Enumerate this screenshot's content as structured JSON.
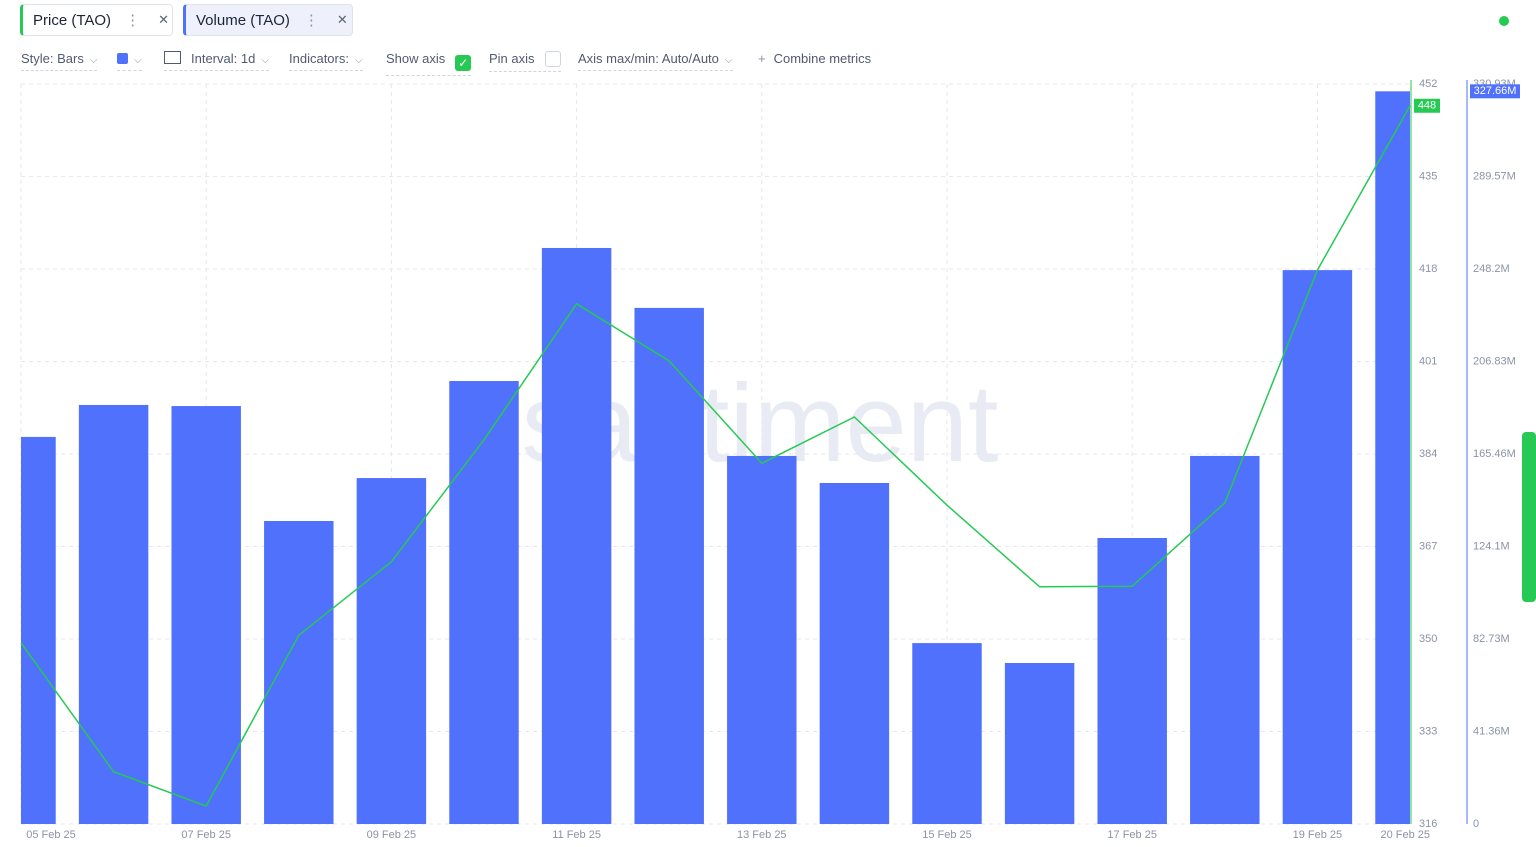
{
  "toolbar": {
    "style": "Style: Bars",
    "interval": "Interval: 1d",
    "indicators": "Indicators:",
    "show_axis": "Show axis",
    "pin_axis": "Pin axis",
    "axis_maxmin": "Axis max/min: Auto/Auto",
    "combine": "Combine metrics"
  },
  "chart_data": {
    "type": "bar",
    "watermark": "santiment",
    "categories": [
      "05 Feb 25",
      null,
      "07 Feb 25",
      null,
      "09 Feb 25",
      null,
      "11 Feb 25",
      null,
      "13 Feb 25",
      null,
      "15 Feb 25",
      null,
      "17 Feb 25",
      null,
      "19 Feb 25",
      "20 Feb 25"
    ],
    "series": [
      {
        "name": "Volume (TAO)",
        "type": "bar",
        "axis": "y2",
        "color": "#5071fb",
        "values": [
          173100000,
          187400000,
          186900000,
          135500000,
          154700000,
          198100000,
          257600000,
          230800000,
          164600000,
          152500000,
          80900000,
          72000000,
          127900000,
          164600000,
          247700000,
          327660000
        ],
        "value_labels": [
          null,
          null,
          null,
          null,
          null,
          null,
          null,
          null,
          null,
          null,
          null,
          null,
          null,
          null,
          null,
          "327.66M"
        ]
      },
      {
        "name": "Price (TAO)",
        "type": "line",
        "color": "#26c953",
        "values": [
          349.3,
          325.6,
          319.3,
          350.7,
          364.2,
          386.6,
          411.6,
          401.1,
          382.3,
          390.8,
          374.6,
          359.6,
          359.7,
          375.0,
          417.8,
          448
        ],
        "value_labels": [
          null,
          null,
          null,
          null,
          null,
          null,
          null,
          null,
          null,
          null,
          null,
          null,
          null,
          null,
          null,
          "448"
        ]
      }
    ],
    "ylim": [
      316,
      452
    ],
    "yticks": [
      316,
      333,
      350,
      367,
      384,
      401,
      418,
      435,
      452
    ],
    "y2lim": [
      0,
      330930000
    ],
    "y2ticks": [
      0,
      {
        "value": 41360000,
        "label": "41.36M"
      },
      {
        "value": 82730000,
        "label": "82.73M"
      },
      {
        "value": 124100000,
        "label": "124.1M"
      },
      {
        "value": 165460000,
        "label": "165.46M"
      },
      {
        "value": 206830000,
        "label": "206.83M"
      },
      {
        "value": 248200000,
        "label": "248.2M"
      },
      {
        "value": 289570000,
        "label": "289.57M"
      },
      {
        "value": 330930000,
        "label": "330.93M"
      }
    ],
    "grid": true
  }
}
